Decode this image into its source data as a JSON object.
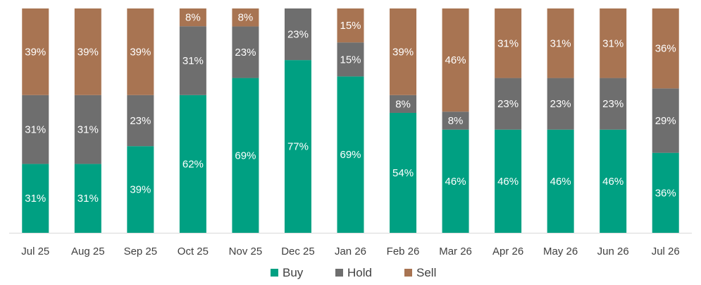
{
  "chart_data": {
    "type": "bar",
    "stacked": true,
    "percent": true,
    "categories": [
      "Jul 25",
      "Aug 25",
      "Sep 25",
      "Oct 25",
      "Nov 25",
      "Dec 25",
      "Jan 26",
      "Feb 26",
      "Mar 26",
      "Apr 26",
      "May 26",
      "Jun 26",
      "Jul 26"
    ],
    "series": [
      {
        "name": "Buy",
        "color": "#00A082",
        "values": [
          31,
          31,
          39,
          62,
          69,
          77,
          69,
          54,
          46,
          46,
          46,
          46,
          36
        ]
      },
      {
        "name": "Hold",
        "color": "#6E6E6E",
        "values": [
          31,
          31,
          23,
          31,
          23,
          23,
          15,
          8,
          8,
          23,
          23,
          23,
          29
        ]
      },
      {
        "name": "Sell",
        "color": "#A87452",
        "values": [
          39,
          39,
          39,
          8,
          8,
          0,
          15,
          39,
          46,
          31,
          31,
          31,
          36
        ]
      }
    ],
    "title": "",
    "xlabel": "",
    "ylabel": "",
    "ylim": [
      0,
      100
    ],
    "grid": false,
    "legend": "bottom"
  }
}
